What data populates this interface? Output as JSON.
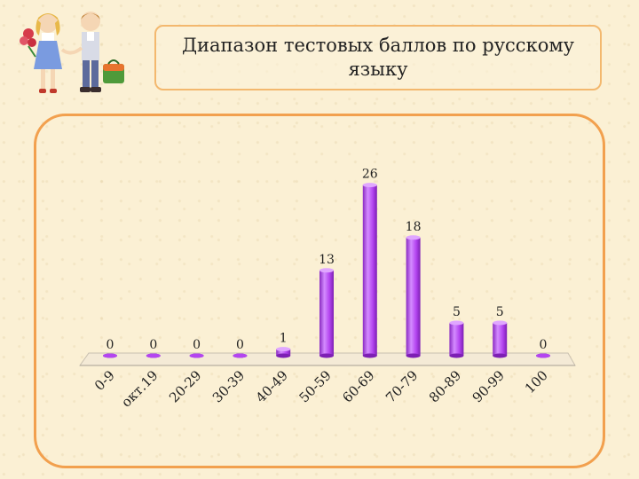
{
  "slide": {
    "title": "Диапазон тестовых баллов по русскому языку"
  },
  "clipart": {
    "icon": "schoolchildren-icon"
  },
  "colors": {
    "bar": "#b445f0",
    "bar_light": "#e0a6ff",
    "bar_dark": "#7d1fb4",
    "frame": "#f2a04e",
    "title_border": "#f3b86e"
  },
  "chart_data": {
    "type": "bar",
    "title": "",
    "xlabel": "",
    "ylabel": "",
    "categories": [
      "0-9",
      "окт.19",
      "20-29",
      "30-39",
      "40-49",
      "50-59",
      "60-69",
      "70-79",
      "80-89",
      "90-99",
      "100"
    ],
    "values": [
      0,
      0,
      0,
      0,
      1,
      13,
      26,
      18,
      5,
      5,
      0
    ],
    "data_labels": [
      "0",
      "0",
      "0",
      "0",
      "1",
      "13",
      "26",
      "18",
      "5",
      "5",
      "0"
    ],
    "ylim": [
      0,
      26
    ],
    "grid": false,
    "legend": "none",
    "style": "3d-cylinder"
  }
}
